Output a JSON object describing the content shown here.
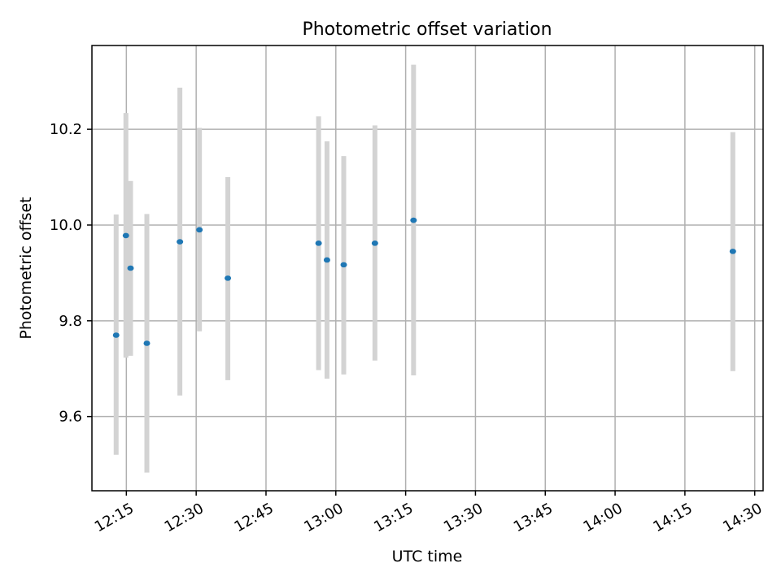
{
  "chart_data": {
    "type": "scatter",
    "title": "Photometric offset variation",
    "xlabel": "UTC time",
    "ylabel": "Photometric offset",
    "x_unit": "minutes",
    "xlim": [
      727.6,
      871.8
    ],
    "ylim": [
      9.445,
      10.375
    ],
    "grid": true,
    "x_ticks": [
      {
        "value": 735,
        "label": "12:15"
      },
      {
        "value": 750,
        "label": "12:30"
      },
      {
        "value": 765,
        "label": "12:45"
      },
      {
        "value": 780,
        "label": "13:00"
      },
      {
        "value": 795,
        "label": "13:15"
      },
      {
        "value": 810,
        "label": "13:30"
      },
      {
        "value": 825,
        "label": "13:45"
      },
      {
        "value": 840,
        "label": "14:00"
      },
      {
        "value": 855,
        "label": "14:15"
      },
      {
        "value": 870,
        "label": "14:30"
      }
    ],
    "y_ticks": [
      {
        "value": 9.6,
        "label": "9.6"
      },
      {
        "value": 9.8,
        "label": "9.8"
      },
      {
        "value": 10.0,
        "label": "10.0"
      },
      {
        "value": 10.2,
        "label": "10.2"
      }
    ],
    "errorbar_color": "#d3d3d3",
    "marker_color": "#1f77b4",
    "points": [
      {
        "time": "12:12.8",
        "x": 732.8,
        "y": 9.77,
        "ylow": 9.52,
        "yhigh": 10.022
      },
      {
        "time": "12:14.9",
        "x": 734.9,
        "y": 9.978,
        "ylow": 9.723,
        "yhigh": 10.234
      },
      {
        "time": "12:15.9",
        "x": 735.9,
        "y": 9.91,
        "ylow": 9.727,
        "yhigh": 10.092
      },
      {
        "time": "12:19.4",
        "x": 739.4,
        "y": 9.753,
        "ylow": 9.483,
        "yhigh": 10.023
      },
      {
        "time": "12:26.5",
        "x": 746.5,
        "y": 9.965,
        "ylow": 9.644,
        "yhigh": 10.287
      },
      {
        "time": "12:30.7",
        "x": 750.7,
        "y": 9.99,
        "ylow": 9.778,
        "yhigh": 10.203
      },
      {
        "time": "12:36.8",
        "x": 756.8,
        "y": 9.889,
        "ylow": 9.676,
        "yhigh": 10.1
      },
      {
        "time": "12:56.3",
        "x": 776.3,
        "y": 9.962,
        "ylow": 9.697,
        "yhigh": 10.227
      },
      {
        "time": "12:58.1",
        "x": 778.1,
        "y": 9.927,
        "ylow": 9.679,
        "yhigh": 10.175
      },
      {
        "time": "13:01.7",
        "x": 781.7,
        "y": 9.917,
        "ylow": 9.688,
        "yhigh": 10.144
      },
      {
        "time": "13:08.4",
        "x": 788.4,
        "y": 9.962,
        "ylow": 9.717,
        "yhigh": 10.208
      },
      {
        "time": "13:16.7",
        "x": 796.7,
        "y": 10.01,
        "ylow": 9.686,
        "yhigh": 10.335
      },
      {
        "time": "14:25.3",
        "x": 865.3,
        "y": 9.945,
        "ylow": 9.695,
        "yhigh": 10.194
      }
    ]
  }
}
